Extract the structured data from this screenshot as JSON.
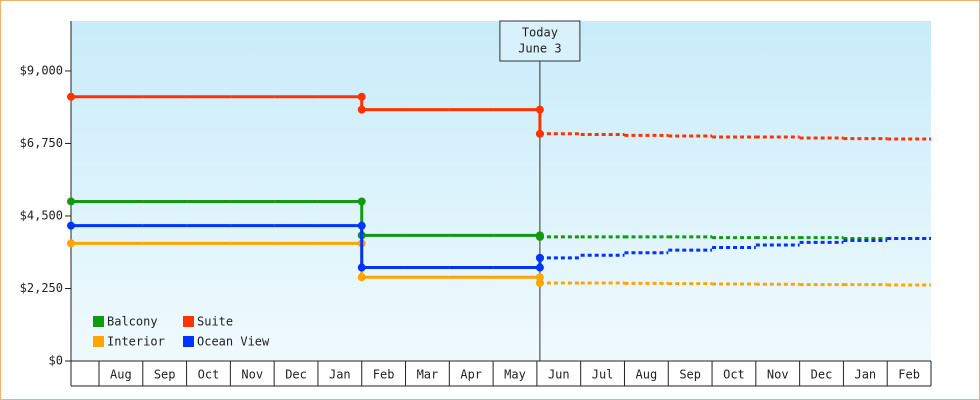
{
  "chart_data": {
    "type": "step",
    "categories": [
      null,
      "Aug",
      "Sep",
      "Oct",
      "Nov",
      "Dec",
      "Jan",
      "Feb",
      "Mar",
      "Apr",
      "May",
      "Jun",
      "Jul",
      "Aug",
      "Sep",
      "Oct",
      "Nov",
      "Dec",
      "Jan",
      "Feb"
    ],
    "ylim": [
      0,
      10550
    ],
    "yticks": [
      {
        "value": 0,
        "label": "$0"
      },
      {
        "value": 2250,
        "label": "$2,250"
      },
      {
        "value": 4500,
        "label": "$4,500"
      },
      {
        "value": 6750,
        "label": "$6,750"
      },
      {
        "value": 9000,
        "label": "$9,000"
      }
    ],
    "annotation": [
      "Today",
      "June 3"
    ],
    "legend": "lower left",
    "series": [
      {
        "name": "Balcony",
        "color": "#119911",
        "values": [
          4950,
          4950,
          4950,
          4950,
          4950,
          4950,
          4950,
          3900,
          3900,
          3900,
          3900,
          null,
          null,
          null,
          null,
          null,
          null,
          null,
          null,
          null
        ],
        "forecast": [
          null,
          null,
          null,
          null,
          null,
          null,
          null,
          null,
          null,
          null,
          null,
          3850,
          3850,
          3850,
          3850,
          3830,
          3830,
          3830,
          3800,
          3800
        ]
      },
      {
        "name": "Suite",
        "color": "#ff3300",
        "values": [
          8200,
          8200,
          8200,
          8200,
          8200,
          8200,
          8200,
          7800,
          7800,
          7800,
          7800,
          null,
          null,
          null,
          null,
          null,
          null,
          null,
          null,
          null
        ],
        "forecast": [
          null,
          null,
          null,
          null,
          null,
          null,
          null,
          null,
          null,
          null,
          null,
          7050,
          7030,
          7000,
          6980,
          6950,
          6950,
          6920,
          6900,
          6890
        ]
      },
      {
        "name": "Interior",
        "color": "#ffa500",
        "values": [
          3650,
          3650,
          3650,
          3650,
          3650,
          3650,
          3650,
          2600,
          2600,
          2600,
          2600,
          null,
          null,
          null,
          null,
          null,
          null,
          null,
          null,
          null
        ],
        "forecast": [
          null,
          null,
          null,
          null,
          null,
          null,
          null,
          null,
          null,
          null,
          null,
          2420,
          2420,
          2410,
          2400,
          2390,
          2380,
          2370,
          2370,
          2360
        ]
      },
      {
        "name": "Ocean View",
        "color": "#0033ff",
        "values": [
          4200,
          4200,
          4200,
          4200,
          4200,
          4200,
          4200,
          2900,
          2900,
          2900,
          2900,
          null,
          null,
          null,
          null,
          null,
          null,
          null,
          null,
          null
        ],
        "forecast": [
          null,
          null,
          null,
          null,
          null,
          null,
          null,
          null,
          null,
          null,
          null,
          3200,
          3280,
          3360,
          3440,
          3520,
          3600,
          3680,
          3740,
          3800
        ]
      }
    ]
  }
}
